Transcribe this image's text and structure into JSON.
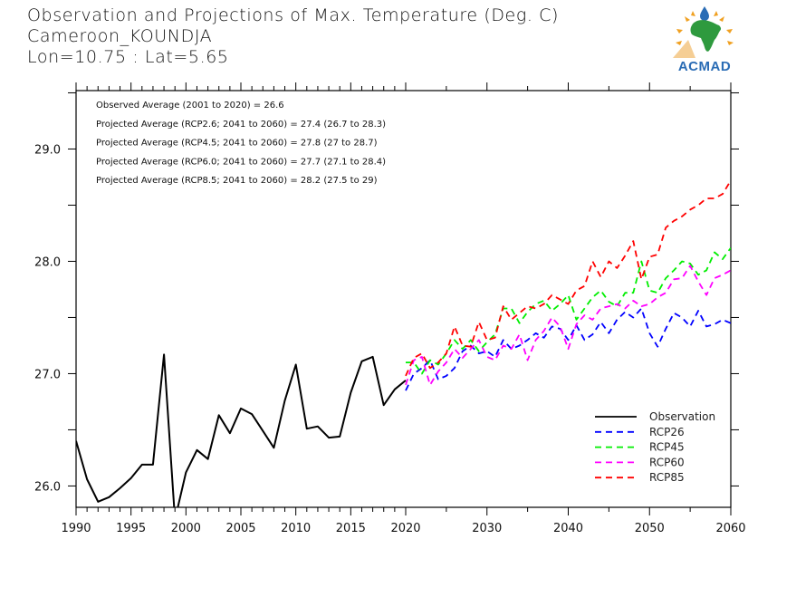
{
  "header": {
    "title": "Observation and Projections of Max. Temperature (Deg. C)",
    "station": "Cameroon_KOUNDJA",
    "coords": "Lon=10.75 : Lat=5.65"
  },
  "logo": {
    "text": "ACMAD",
    "icon": "acmad-africa-logo",
    "colors": {
      "africa": "#2e9a3e",
      "sun_rays": "#f0a020",
      "drop": "#2a6cb5",
      "text": "#2a6cb5"
    }
  },
  "chart_data": {
    "type": "line",
    "title": "Observation and Projections of Max. Temperature (Deg. C)",
    "xlabel": "",
    "ylabel": "",
    "xlim": [
      1990,
      2060
    ],
    "ylim": [
      25.81,
      29.52
    ],
    "x_scale_note": "piecewise linear: 1990-2020 and 2020-2060 occupy roughly equal widths",
    "x_ticks_major": [
      1990,
      1995,
      2000,
      2005,
      2010,
      2015,
      2020,
      2030,
      2040,
      2050,
      2060
    ],
    "x_tick_labels": [
      "1990",
      "1995",
      "2000",
      "2005",
      "2010",
      "2015",
      "2020",
      "2030",
      "2040",
      "2050",
      "2060"
    ],
    "y_ticks": [
      26.0,
      27.0,
      28.0,
      29.0
    ],
    "y_tick_labels": [
      "26.0",
      "27.0",
      "28.0",
      "29.0"
    ],
    "y_minor_ticks": [
      26.5,
      27.5,
      28.5,
      29.5
    ],
    "grid": false,
    "legend_position": "bottom-right",
    "annotations": [
      "Observed Average (2001 to 2020) = 26.6",
      "Projected Average (RCP2.6; 2041 to 2060) = 27.4 (26.7 to 28.3)",
      "Projected Average (RCP4.5; 2041 to 2060) = 27.8 (27 to 28.7)",
      "Projected Average (RCP6.0; 2041 to 2060) = 27.7 (27.1 to 28.4)",
      "Projected Average (RCP8.5; 2041 to 2060) = 28.2 (27.5 to 29)"
    ],
    "series": [
      {
        "name": "Observation",
        "color": "#000000",
        "style": "solid",
        "x": [
          1990,
          1991,
          1992,
          1993,
          1994,
          1995,
          1996,
          1997,
          1998,
          1999,
          2000,
          2001,
          2002,
          2003,
          2004,
          2005,
          2006,
          2007,
          2008,
          2009,
          2010,
          2011,
          2012,
          2013,
          2014,
          2015,
          2016,
          2017,
          2018,
          2019,
          2020
        ],
        "values": [
          26.4,
          26.06,
          25.86,
          25.9,
          25.98,
          26.07,
          26.19,
          26.19,
          27.17,
          25.7,
          26.12,
          26.32,
          26.24,
          26.63,
          26.47,
          26.69,
          26.64,
          26.49,
          26.34,
          26.76,
          27.08,
          26.51,
          26.53,
          26.43,
          26.44,
          26.83,
          27.11,
          27.15,
          26.72,
          26.86,
          26.94
        ]
      },
      {
        "name": "RCP26",
        "color": "#0000ff",
        "style": "dashed",
        "x": [
          2020,
          2021,
          2022,
          2023,
          2024,
          2025,
          2026,
          2027,
          2028,
          2029,
          2030,
          2031,
          2032,
          2033,
          2034,
          2035,
          2036,
          2037,
          2038,
          2039,
          2040,
          2041,
          2042,
          2043,
          2044,
          2045,
          2046,
          2047,
          2048,
          2049,
          2050,
          2051,
          2052,
          2053,
          2054,
          2055,
          2056,
          2057,
          2058,
          2059,
          2060
        ],
        "values": [
          26.85,
          27.0,
          27.05,
          27.12,
          26.95,
          26.98,
          27.05,
          27.2,
          27.25,
          27.18,
          27.2,
          27.15,
          27.3,
          27.22,
          27.25,
          27.3,
          27.36,
          27.32,
          27.42,
          27.4,
          27.3,
          27.43,
          27.3,
          27.35,
          27.46,
          27.36,
          27.48,
          27.55,
          27.5,
          27.58,
          27.36,
          27.24,
          27.4,
          27.54,
          27.5,
          27.42,
          27.56,
          27.42,
          27.44,
          27.48,
          27.45
        ]
      },
      {
        "name": "RCP45",
        "color": "#00ee00",
        "style": "dashed",
        "x": [
          2020,
          2021,
          2022,
          2023,
          2024,
          2025,
          2026,
          2027,
          2028,
          2029,
          2030,
          2031,
          2032,
          2033,
          2034,
          2035,
          2036,
          2037,
          2038,
          2039,
          2040,
          2041,
          2042,
          2043,
          2044,
          2045,
          2046,
          2047,
          2048,
          2049,
          2050,
          2051,
          2052,
          2053,
          2054,
          2055,
          2056,
          2057,
          2058,
          2059,
          2060
        ],
        "values": [
          27.1,
          27.1,
          27.0,
          27.12,
          27.08,
          27.18,
          27.3,
          27.22,
          27.3,
          27.2,
          27.28,
          27.35,
          27.58,
          27.58,
          27.45,
          27.55,
          27.62,
          27.65,
          27.56,
          27.62,
          27.7,
          27.48,
          27.58,
          27.68,
          27.74,
          27.64,
          27.6,
          27.72,
          27.72,
          28.0,
          27.74,
          27.72,
          27.85,
          27.92,
          28.0,
          27.98,
          27.88,
          27.92,
          28.08,
          28.02,
          28.12
        ]
      },
      {
        "name": "RCP60",
        "color": "#ff00ff",
        "style": "dashed",
        "x": [
          2020,
          2021,
          2022,
          2023,
          2024,
          2025,
          2026,
          2027,
          2028,
          2029,
          2030,
          2031,
          2032,
          2033,
          2034,
          2035,
          2036,
          2037,
          2038,
          2039,
          2040,
          2041,
          2042,
          2043,
          2044,
          2045,
          2046,
          2047,
          2048,
          2049,
          2050,
          2051,
          2052,
          2053,
          2054,
          2055,
          2056,
          2057,
          2058,
          2059,
          2060
        ],
        "values": [
          26.9,
          27.12,
          27.15,
          26.9,
          27.02,
          27.1,
          27.22,
          27.14,
          27.22,
          27.3,
          27.15,
          27.12,
          27.25,
          27.22,
          27.35,
          27.12,
          27.3,
          27.38,
          27.5,
          27.42,
          27.22,
          27.44,
          27.52,
          27.48,
          27.58,
          27.6,
          27.62,
          27.58,
          27.65,
          27.6,
          27.62,
          27.68,
          27.72,
          27.84,
          27.85,
          27.96,
          27.82,
          27.7,
          27.85,
          27.88,
          27.92
        ]
      },
      {
        "name": "RCP85",
        "color": "#ff0000",
        "style": "dashed",
        "x": [
          2020,
          2021,
          2022,
          2023,
          2024,
          2025,
          2026,
          2027,
          2028,
          2029,
          2030,
          2031,
          2032,
          2033,
          2034,
          2035,
          2036,
          2037,
          2038,
          2039,
          2040,
          2041,
          2042,
          2043,
          2044,
          2045,
          2046,
          2047,
          2048,
          2049,
          2050,
          2051,
          2052,
          2053,
          2054,
          2055,
          2056,
          2057,
          2058,
          2059,
          2060
        ],
        "values": [
          26.98,
          27.14,
          27.18,
          27.05,
          27.1,
          27.18,
          27.42,
          27.25,
          27.24,
          27.46,
          27.3,
          27.32,
          27.6,
          27.48,
          27.54,
          27.6,
          27.58,
          27.62,
          27.7,
          27.66,
          27.62,
          27.74,
          27.78,
          28.0,
          27.86,
          28.0,
          27.94,
          28.05,
          28.18,
          27.84,
          28.04,
          28.06,
          28.3,
          28.36,
          28.4,
          28.46,
          28.5,
          28.56,
          28.56,
          28.6,
          28.72
        ]
      }
    ]
  }
}
